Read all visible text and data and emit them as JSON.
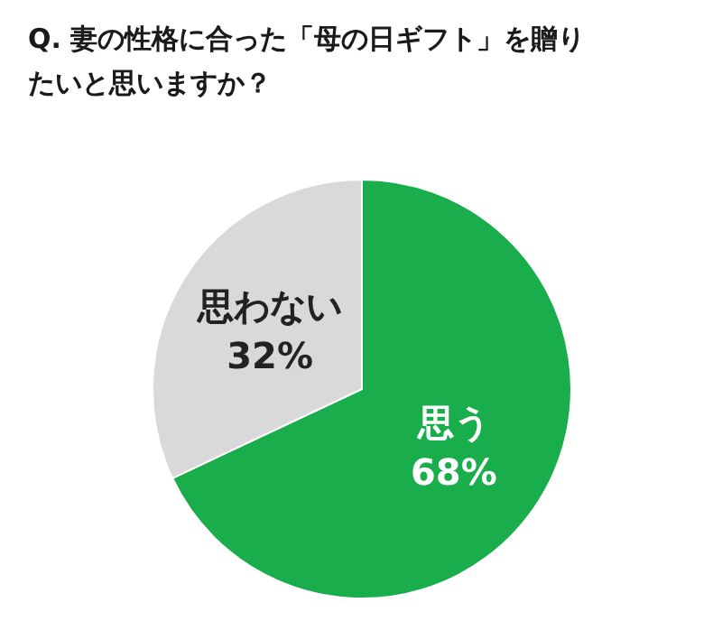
{
  "chart_data": {
    "type": "pie",
    "title": "Q.  妻の性格に合った「母の日ギフト」を贈りたいと思いますか？",
    "categories": [
      "思う",
      "思わない"
    ],
    "values": [
      68,
      32
    ],
    "colors": [
      "#1aad4b",
      "#d9d9d9"
    ],
    "value_labels": [
      "68%",
      "32%"
    ]
  }
}
